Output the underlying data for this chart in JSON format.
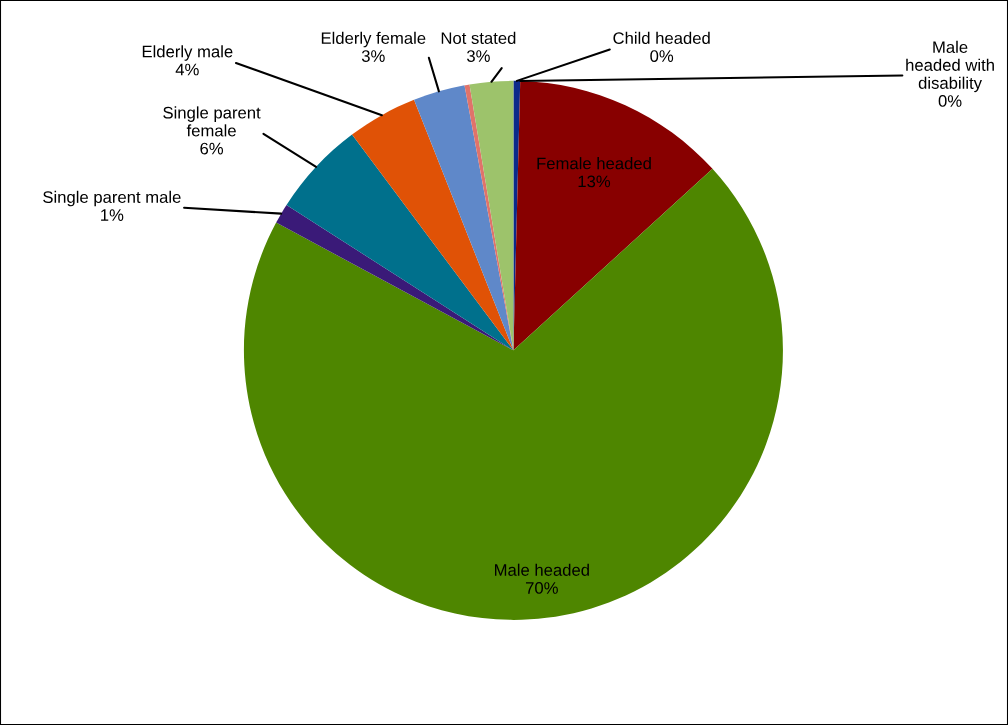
{
  "chart_data": {
    "type": "pie",
    "categories": [
      "Child headed",
      "Male headed with disability",
      "Female headed",
      "Male headed",
      "Single parent male",
      "Single parent female",
      "Elderly male",
      "Elderly female",
      null,
      "Not stated"
    ],
    "values": [
      0.4,
      0,
      12.8,
      69.5,
      1.2,
      5.7,
      4.2,
      3.1,
      0.3,
      2.6
    ],
    "colors": [
      "#0b2a8a",
      "#1f3c88",
      "#880000",
      "#4e8600",
      "#3a1a78",
      "#00708c",
      "#e05206",
      "#5f88c9",
      "#e0736a",
      "#9dc36b"
    ],
    "value_labels": [
      "0%",
      "0%",
      "13%",
      "70%",
      "1%",
      "6%",
      "4%",
      "3%",
      null,
      "3%"
    ]
  }
}
